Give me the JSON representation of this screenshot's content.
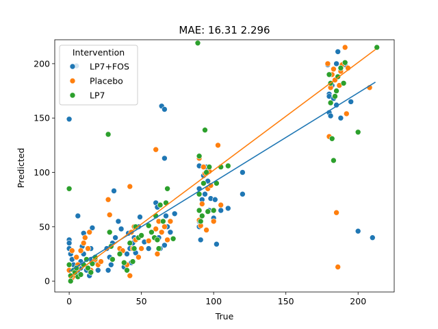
{
  "chart_data": {
    "type": "scatter",
    "title": "MAE: 16.31  2.296",
    "xlabel": "True",
    "ylabel": "Predicted",
    "xlim": [
      -10,
      225
    ],
    "ylim": [
      -10,
      222
    ],
    "xticks": [
      0,
      50,
      100,
      150,
      200
    ],
    "yticks": [
      0,
      50,
      100,
      150,
      200
    ],
    "grid": false,
    "legend": {
      "title": "Intervention",
      "placement": "upper-left"
    },
    "series": [
      {
        "name": "LP7+FOS",
        "color": "#1f77b4",
        "points": [
          [
            0,
            149
          ],
          [
            5,
            198
          ],
          [
            6,
            60
          ],
          [
            0,
            38
          ],
          [
            0,
            35
          ],
          [
            0,
            30
          ],
          [
            1,
            25
          ],
          [
            2,
            20
          ],
          [
            3,
            15
          ],
          [
            4,
            10
          ],
          [
            5,
            5
          ],
          [
            6,
            8
          ],
          [
            8,
            12
          ],
          [
            8,
            18
          ],
          [
            9,
            32
          ],
          [
            10,
            44
          ],
          [
            10,
            25
          ],
          [
            12,
            10
          ],
          [
            14,
            5
          ],
          [
            15,
            20
          ],
          [
            15,
            30
          ],
          [
            16,
            49
          ],
          [
            18,
            19
          ],
          [
            20,
            10
          ],
          [
            26,
            30
          ],
          [
            27,
            10
          ],
          [
            28,
            22
          ],
          [
            29,
            15
          ],
          [
            30,
            35
          ],
          [
            31,
            83
          ],
          [
            32,
            40
          ],
          [
            34,
            55
          ],
          [
            36,
            48
          ],
          [
            38,
            13
          ],
          [
            40,
            25
          ],
          [
            41,
            44
          ],
          [
            42,
            30
          ],
          [
            43,
            17
          ],
          [
            44,
            35
          ],
          [
            45,
            40
          ],
          [
            46,
            26
          ],
          [
            48,
            50
          ],
          [
            49,
            59
          ],
          [
            52,
            36
          ],
          [
            55,
            30
          ],
          [
            60,
            72
          ],
          [
            61,
            68
          ],
          [
            62,
            55
          ],
          [
            62,
            40
          ],
          [
            63,
            30
          ],
          [
            64,
            161
          ],
          [
            66,
            158
          ],
          [
            66,
            113
          ],
          [
            66,
            33
          ],
          [
            67,
            60
          ],
          [
            68,
            50
          ],
          [
            70,
            45
          ],
          [
            73,
            62
          ],
          [
            90,
            115
          ],
          [
            90,
            106
          ],
          [
            90,
            85
          ],
          [
            90,
            55
          ],
          [
            90,
            50
          ],
          [
            91,
            38
          ],
          [
            92,
            75
          ],
          [
            93,
            97
          ],
          [
            94,
            80
          ],
          [
            95,
            105
          ],
          [
            96,
            92
          ],
          [
            97,
            65
          ],
          [
            98,
            76
          ],
          [
            100,
            58
          ],
          [
            101,
            75
          ],
          [
            102,
            34
          ],
          [
            105,
            65
          ],
          [
            110,
            67
          ],
          [
            120,
            100
          ],
          [
            120,
            80
          ],
          [
            179,
            199
          ],
          [
            180,
            190
          ],
          [
            180,
            172
          ],
          [
            180,
            170
          ],
          [
            180,
            155
          ],
          [
            181,
            152
          ],
          [
            182,
            180
          ],
          [
            183,
            168
          ],
          [
            185,
            200
          ],
          [
            185,
            162
          ],
          [
            186,
            211
          ],
          [
            188,
            150
          ],
          [
            190,
            182
          ],
          [
            191,
            199
          ],
          [
            195,
            165
          ],
          [
            200,
            46
          ],
          [
            210,
            40
          ]
        ]
      },
      {
        "name": "Placebo",
        "color": "#ff7f0e",
        "points": [
          [
            0,
            10
          ],
          [
            2,
            3
          ],
          [
            2,
            28
          ],
          [
            4,
            5
          ],
          [
            5,
            22
          ],
          [
            6,
            15
          ],
          [
            8,
            28
          ],
          [
            10,
            35
          ],
          [
            11,
            40
          ],
          [
            13,
            30
          ],
          [
            14,
            45
          ],
          [
            15,
            10
          ],
          [
            18,
            20
          ],
          [
            20,
            15
          ],
          [
            22,
            18
          ],
          [
            27,
            75
          ],
          [
            28,
            61
          ],
          [
            30,
            20
          ],
          [
            35,
            30
          ],
          [
            37,
            28
          ],
          [
            40,
            15
          ],
          [
            42,
            87
          ],
          [
            42,
            5
          ],
          [
            43,
            45
          ],
          [
            44,
            30
          ],
          [
            45,
            50
          ],
          [
            46,
            38
          ],
          [
            48,
            22
          ],
          [
            50,
            30
          ],
          [
            55,
            37
          ],
          [
            60,
            121
          ],
          [
            60,
            48
          ],
          [
            61,
            25
          ],
          [
            62,
            55
          ],
          [
            64,
            45
          ],
          [
            66,
            50
          ],
          [
            68,
            38
          ],
          [
            70,
            55
          ],
          [
            90,
            113
          ],
          [
            90,
            56
          ],
          [
            91,
            51
          ],
          [
            92,
            71
          ],
          [
            93,
            105
          ],
          [
            94,
            99
          ],
          [
            95,
            47
          ],
          [
            96,
            85
          ],
          [
            97,
            101
          ],
          [
            98,
            88
          ],
          [
            100,
            55
          ],
          [
            103,
            125
          ],
          [
            105,
            70
          ],
          [
            179,
            200
          ],
          [
            180,
            133
          ],
          [
            181,
            178
          ],
          [
            182,
            190
          ],
          [
            183,
            195
          ],
          [
            184,
            185
          ],
          [
            185,
            63
          ],
          [
            186,
            13
          ],
          [
            187,
            180
          ],
          [
            188,
            193
          ],
          [
            189,
            199
          ],
          [
            191,
            215
          ],
          [
            192,
            154
          ],
          [
            193,
            196
          ],
          [
            208,
            178
          ]
        ]
      },
      {
        "name": "LP7",
        "color": "#2ca02c",
        "points": [
          [
            0,
            85
          ],
          [
            0,
            15
          ],
          [
            1,
            5
          ],
          [
            1,
            0
          ],
          [
            3,
            10
          ],
          [
            4,
            8
          ],
          [
            5,
            12
          ],
          [
            6,
            4
          ],
          [
            8,
            6
          ],
          [
            10,
            15
          ],
          [
            12,
            20
          ],
          [
            13,
            12
          ],
          [
            15,
            8
          ],
          [
            16,
            16
          ],
          [
            18,
            22
          ],
          [
            27,
            135
          ],
          [
            28,
            45
          ],
          [
            29,
            32
          ],
          [
            30,
            20
          ],
          [
            35,
            25
          ],
          [
            38,
            17
          ],
          [
            40,
            10
          ],
          [
            42,
            35
          ],
          [
            44,
            18
          ],
          [
            45,
            30
          ],
          [
            46,
            50
          ],
          [
            48,
            40
          ],
          [
            50,
            42
          ],
          [
            55,
            51
          ],
          [
            57,
            45
          ],
          [
            59,
            40
          ],
          [
            60,
            60
          ],
          [
            61,
            38
          ],
          [
            62,
            30
          ],
          [
            63,
            70
          ],
          [
            65,
            55
          ],
          [
            67,
            72
          ],
          [
            68,
            85
          ],
          [
            72,
            39
          ],
          [
            89,
            219
          ],
          [
            90,
            115
          ],
          [
            90,
            80
          ],
          [
            90,
            65
          ],
          [
            91,
            55
          ],
          [
            92,
            60
          ],
          [
            93,
            90
          ],
          [
            94,
            139
          ],
          [
            95,
            100
          ],
          [
            96,
            64
          ],
          [
            97,
            105
          ],
          [
            100,
            65
          ],
          [
            102,
            90
          ],
          [
            105,
            105
          ],
          [
            110,
            106
          ],
          [
            180,
            190
          ],
          [
            181,
            182
          ],
          [
            181,
            164
          ],
          [
            182,
            131
          ],
          [
            183,
            111
          ],
          [
            184,
            170
          ],
          [
            185,
            175
          ],
          [
            186,
            188
          ],
          [
            188,
            196
          ],
          [
            190,
            182
          ],
          [
            191,
            201
          ],
          [
            200,
            137
          ],
          [
            213,
            215
          ]
        ]
      }
    ],
    "fit_lines": [
      {
        "series": "LP7+FOS",
        "color": "#1f77b4",
        "from": [
          0,
          9
        ],
        "to": [
          212,
          183
        ]
      },
      {
        "series": "Placebo",
        "color": "#ff7f0e",
        "from": [
          0,
          3
        ],
        "to": [
          212,
          213
        ]
      }
    ]
  }
}
